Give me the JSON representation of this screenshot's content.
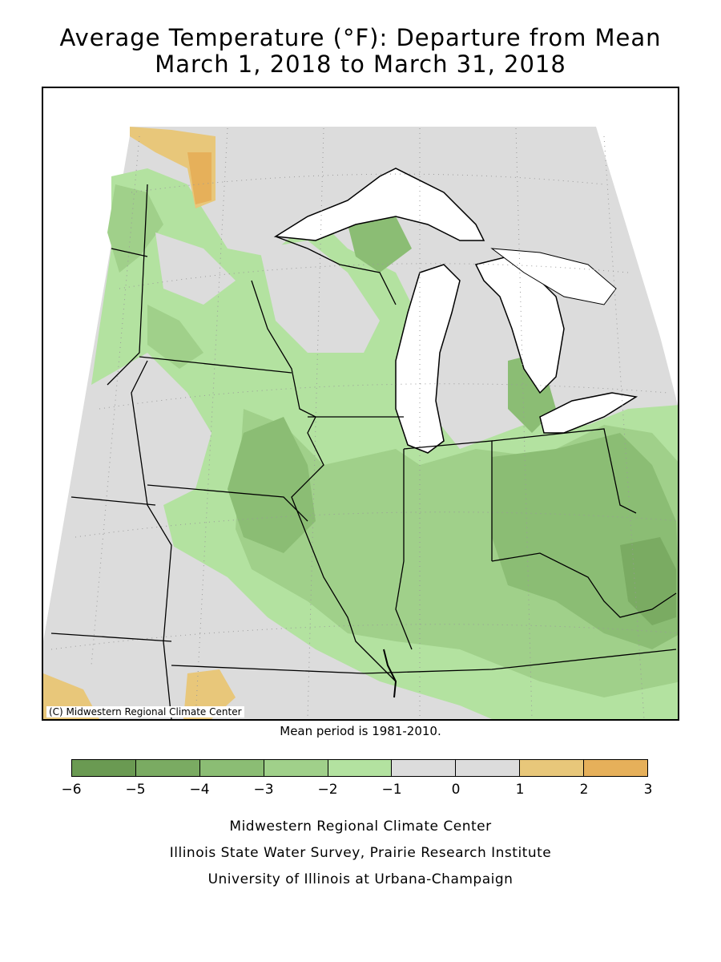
{
  "title": {
    "line1": "Average Temperature (°F): Departure from Mean",
    "line2": "March 1, 2018 to March 31, 2018"
  },
  "map": {
    "copyright": "(C) Midwestern Regional Climate Center",
    "colors": {
      "background_outside": "#ffffff",
      "lakes": "#ffffff",
      "boundary": "#000000",
      "gridline": "#999999"
    }
  },
  "mean_period_note": "Mean period is 1981-2010.",
  "legend": {
    "bins": [
      {
        "min": -6,
        "max": -5,
        "color": "#6a9a52"
      },
      {
        "min": -5,
        "max": -4,
        "color": "#7aab62"
      },
      {
        "min": -4,
        "max": -3,
        "color": "#8bbd74"
      },
      {
        "min": -3,
        "max": -2,
        "color": "#a0d08a"
      },
      {
        "min": -2,
        "max": -1,
        "color": "#b3e2a0"
      },
      {
        "min": -1,
        "max": 0,
        "color": "#dcdcdc"
      },
      {
        "min": 0,
        "max": 1,
        "color": "#dcdcdc"
      },
      {
        "min": 1,
        "max": 2,
        "color": "#e8c77a"
      },
      {
        "min": 2,
        "max": 3,
        "color": "#e6b05a"
      }
    ],
    "tick_labels": [
      "−6",
      "−5",
      "−4",
      "−3",
      "−2",
      "−1",
      "0",
      "1",
      "2",
      "3"
    ]
  },
  "credits": {
    "line1": "Midwestern Regional Climate Center",
    "line2": "Illinois State Water Survey, Prairie Research Institute",
    "line3": "University of Illinois at Urbana-Champaign"
  }
}
